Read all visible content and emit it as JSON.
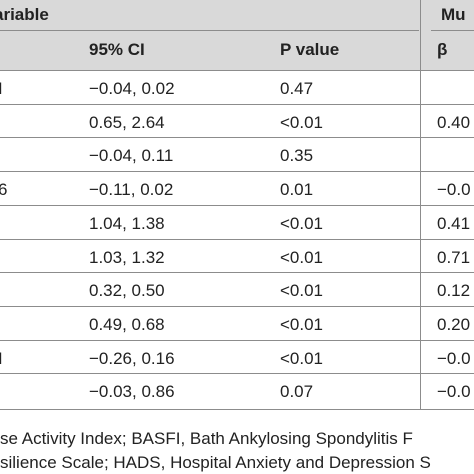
{
  "header": {
    "group_left": "ariable",
    "group_right": "Mu",
    "col_ci": "95% CI",
    "col_p": "P value",
    "col_beta": "β"
  },
  "rows": [
    {
      "left": "I",
      "ci": "−0.04, 0.02",
      "p": "0.47",
      "beta": ""
    },
    {
      "left": "",
      "ci": "0.65, 2.64",
      "p": "<0.01",
      "beta": "0.40"
    },
    {
      "left": "",
      "ci": "−0.04, 0.11",
      "p": "0.35",
      "beta": ""
    },
    {
      "left": "6",
      "ci": "−0.11, 0.02",
      "p": "0.01",
      "beta": "−0.0"
    },
    {
      "left": "",
      "ci": "1.04, 1.38",
      "p": "<0.01",
      "beta": "0.41"
    },
    {
      "left": "",
      "ci": "1.03, 1.32",
      "p": "<0.01",
      "beta": "0.71"
    },
    {
      "left": "",
      "ci": "0.32, 0.50",
      "p": "<0.01",
      "beta": "0.12"
    },
    {
      "left": "",
      "ci": "0.49, 0.68",
      "p": "<0.01",
      "beta": "0.20"
    },
    {
      "left": "I",
      "ci": "−0.26, 0.16",
      "p": "<0.01",
      "beta": "−0.0"
    },
    {
      "left": "",
      "ci": "−0.03, 0.86",
      "p": "0.07",
      "beta": "−0.0"
    }
  ],
  "footnote": {
    "line1": "se Activity Index; BASFI, Bath Ankylosing Spondylitis F",
    "line2": "silience Scale; HADS, Hospital Anxiety and Depression S"
  },
  "colors": {
    "header_background": "#d9d9d9",
    "rule": "#8c8c8c",
    "text": "#222222"
  }
}
